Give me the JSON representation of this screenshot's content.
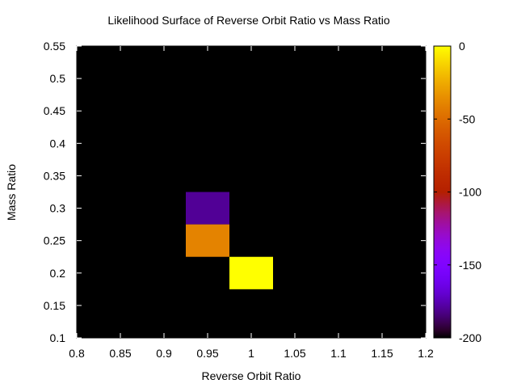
{
  "chart_data": {
    "type": "heatmap",
    "title": "Likelihood Surface of Reverse Orbit Ratio vs Mass Ratio",
    "xlabel": "Reverse Orbit Ratio",
    "ylabel": "Mass Ratio",
    "xlim": [
      0.8,
      1.2
    ],
    "ylim": [
      0.1,
      0.55
    ],
    "xticks": [
      "0.8",
      "0.85",
      "0.9",
      "0.95",
      "1",
      "1.05",
      "1.1",
      "1.15",
      "1.2"
    ],
    "yticks": [
      "0.1",
      "0.15",
      "0.2",
      "0.25",
      "0.3",
      "0.35",
      "0.4",
      "0.45",
      "0.5",
      "0.55"
    ],
    "background_value": -200,
    "cell_width": 0.05,
    "cell_height": 0.05,
    "cells": [
      {
        "x": 0.95,
        "y": 0.3,
        "value": -180
      },
      {
        "x": 0.95,
        "y": 0.25,
        "value": -40
      },
      {
        "x": 1.0,
        "y": 0.2,
        "value": 0
      }
    ],
    "colorbar": {
      "range": [
        -200,
        0
      ],
      "ticks": [
        "0",
        "-50",
        "-100",
        "-150",
        "-200"
      ],
      "palette": "gnuplot"
    },
    "grid": false,
    "legend": "none"
  }
}
